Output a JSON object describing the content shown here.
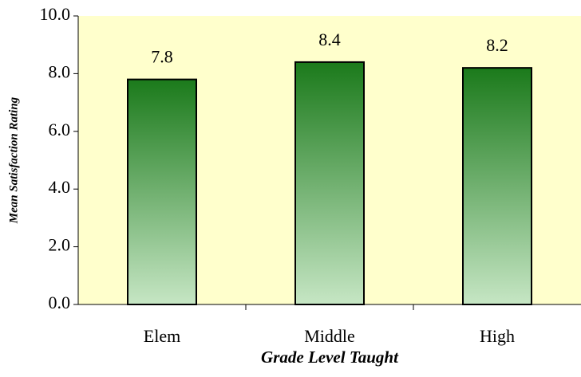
{
  "chart_data": {
    "type": "bar",
    "x_label": "Grade Level Taught",
    "y_label": "Mean Satisfaction Rating",
    "categories": [
      "Elem",
      "Middle",
      "High"
    ],
    "values": [
      7.8,
      8.4,
      8.2
    ],
    "ylim": [
      0,
      10
    ],
    "yticks": [
      {
        "value": 0,
        "label": "0.0"
      },
      {
        "value": 2,
        "label": "2.0"
      },
      {
        "value": 4,
        "label": "4.0"
      },
      {
        "value": 6,
        "label": "6.0"
      },
      {
        "value": 8,
        "label": "8.0"
      },
      {
        "value": 10,
        "label": "10.0"
      }
    ],
    "grid": false,
    "color_top": "#1b7a1b",
    "color_bottom": "#c6e6c4",
    "background": "#ffffcc"
  }
}
